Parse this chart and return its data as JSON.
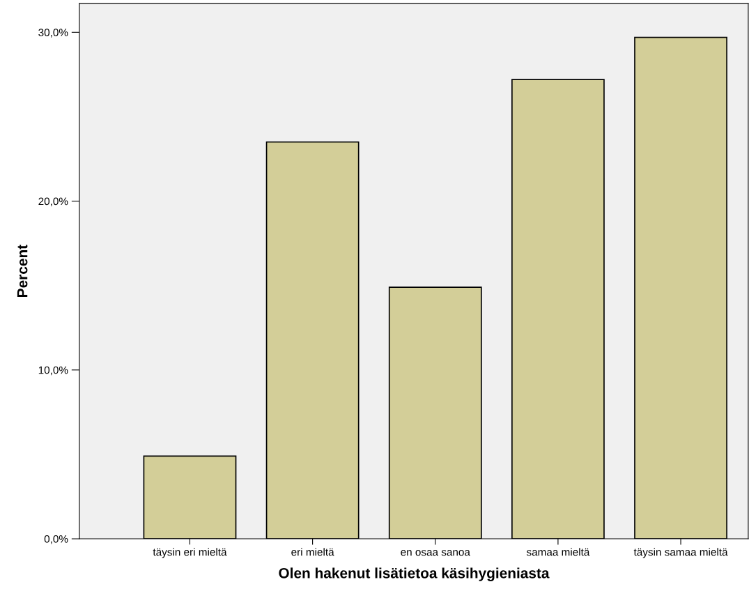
{
  "chart_data": {
    "type": "bar",
    "xlabel": "Olen hakenut lisätietoa käsihygieniasta",
    "ylabel": "Percent",
    "categories": [
      "täysin eri mieltä",
      "eri mieltä",
      "en osaa sanoa",
      "samaa mieltä",
      "täysin samaa mieltä"
    ],
    "values": [
      4.9,
      23.5,
      14.9,
      27.2,
      29.7
    ],
    "color": "#d3ce98",
    "ylim": [
      0,
      31.7
    ],
    "yticks": [
      {
        "value": 0,
        "label": "0,0%"
      },
      {
        "value": 10,
        "label": "10,0%"
      },
      {
        "value": 20,
        "label": "20,0%"
      },
      {
        "value": 30,
        "label": "30,0%"
      }
    ],
    "grid": false
  }
}
